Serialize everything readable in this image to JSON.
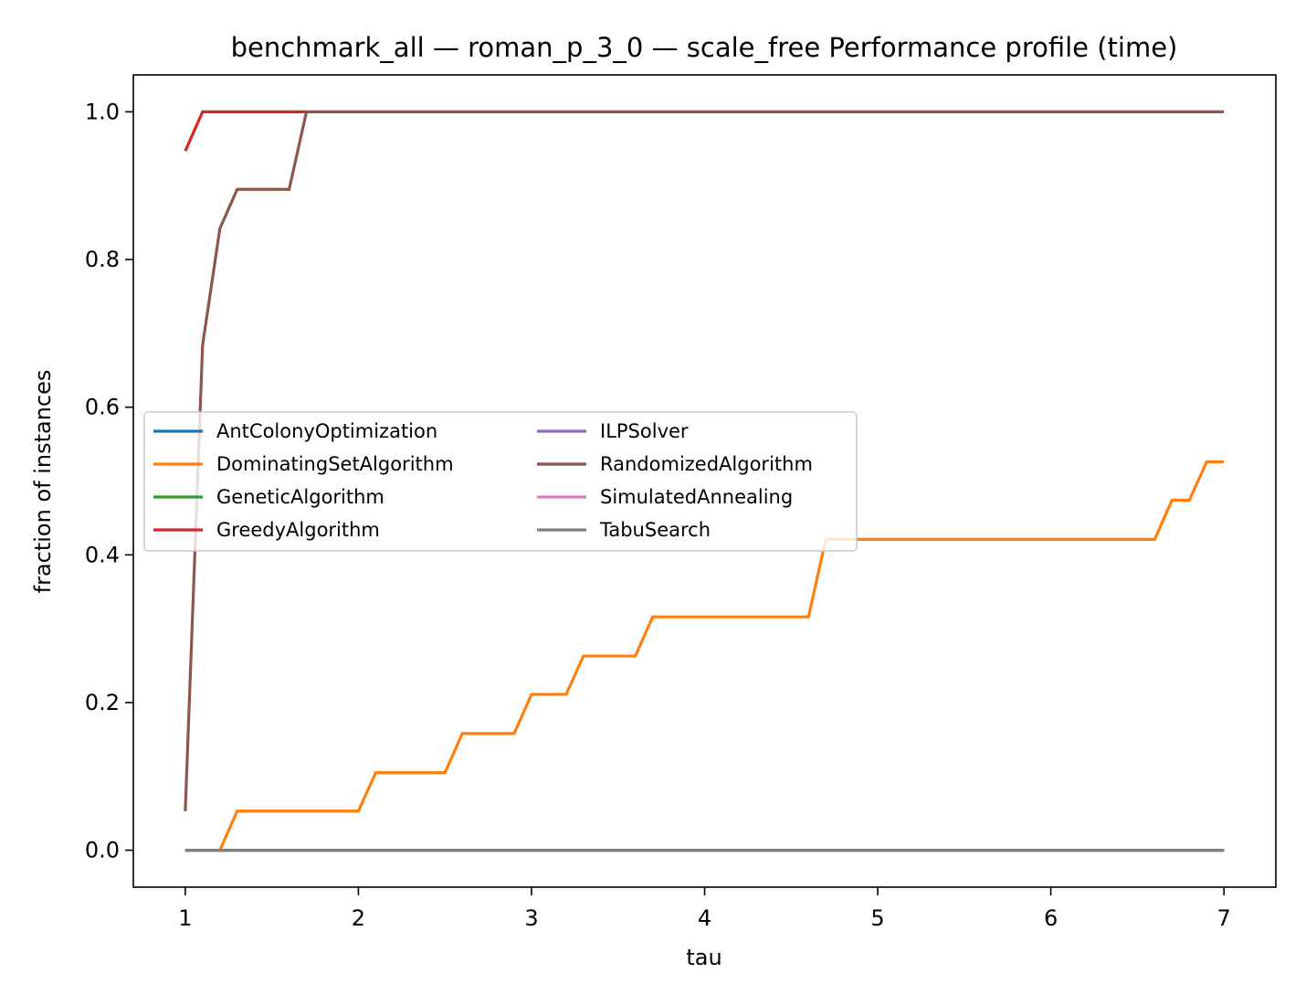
{
  "chart_data": {
    "type": "line",
    "title": "benchmark_all — roman_p_3_0 — scale_free Performance profile (time)",
    "xlabel": "tau",
    "ylabel": "fraction of instances",
    "xlim": [
      0.7,
      7.3
    ],
    "ylim": [
      -0.05,
      1.05
    ],
    "x_ticks": [
      "1",
      "2",
      "3",
      "4",
      "5",
      "6",
      "7"
    ],
    "y_ticks": [
      "0.0",
      "0.2",
      "0.4",
      "0.6",
      "0.8",
      "1.0"
    ],
    "grid": false,
    "legend_position": "center-left",
    "series": [
      {
        "name": "AntColonyOptimization",
        "color": "#1f77b4",
        "points": [
          [
            1.0,
            0.0
          ],
          [
            7.0,
            0.0
          ]
        ]
      },
      {
        "name": "DominatingSetAlgorithm",
        "color": "#ff7f0e",
        "points": [
          [
            1.0,
            0.0
          ],
          [
            1.2,
            0.0
          ],
          [
            1.3,
            0.053
          ],
          [
            2.0,
            0.053
          ],
          [
            2.1,
            0.105
          ],
          [
            2.5,
            0.105
          ],
          [
            2.6,
            0.158
          ],
          [
            2.9,
            0.158
          ],
          [
            3.0,
            0.211
          ],
          [
            3.2,
            0.211
          ],
          [
            3.3,
            0.263
          ],
          [
            3.6,
            0.263
          ],
          [
            3.7,
            0.316
          ],
          [
            4.6,
            0.316
          ],
          [
            4.7,
            0.421
          ],
          [
            6.6,
            0.421
          ],
          [
            6.7,
            0.474
          ],
          [
            6.8,
            0.474
          ],
          [
            6.9,
            0.526
          ],
          [
            7.0,
            0.526
          ]
        ]
      },
      {
        "name": "GeneticAlgorithm",
        "color": "#2ca02c",
        "points": [
          [
            1.0,
            0.0
          ],
          [
            7.0,
            0.0
          ]
        ]
      },
      {
        "name": "GreedyAlgorithm",
        "color": "#d62728",
        "points": [
          [
            1.0,
            0.947
          ],
          [
            1.1,
            1.0
          ],
          [
            1.7,
            1.0
          ]
        ]
      },
      {
        "name": "ILPSolver",
        "color": "#9467bd",
        "points": [
          [
            1.0,
            0.0
          ],
          [
            7.0,
            0.0
          ]
        ]
      },
      {
        "name": "RandomizedAlgorithm",
        "color": "#8c564b",
        "points": [
          [
            1.0,
            0.053
          ],
          [
            1.1,
            0.684
          ],
          [
            1.2,
            0.842
          ],
          [
            1.3,
            0.895
          ],
          [
            1.6,
            0.895
          ],
          [
            1.7,
            1.0
          ],
          [
            7.0,
            1.0
          ]
        ]
      },
      {
        "name": "SimulatedAnnealing",
        "color": "#e377c2",
        "points": [
          [
            1.0,
            0.0
          ],
          [
            7.0,
            0.0
          ]
        ]
      },
      {
        "name": "TabuSearch",
        "color": "#7f7f7f",
        "points": [
          [
            1.0,
            0.0
          ],
          [
            7.0,
            0.0
          ]
        ]
      }
    ]
  }
}
